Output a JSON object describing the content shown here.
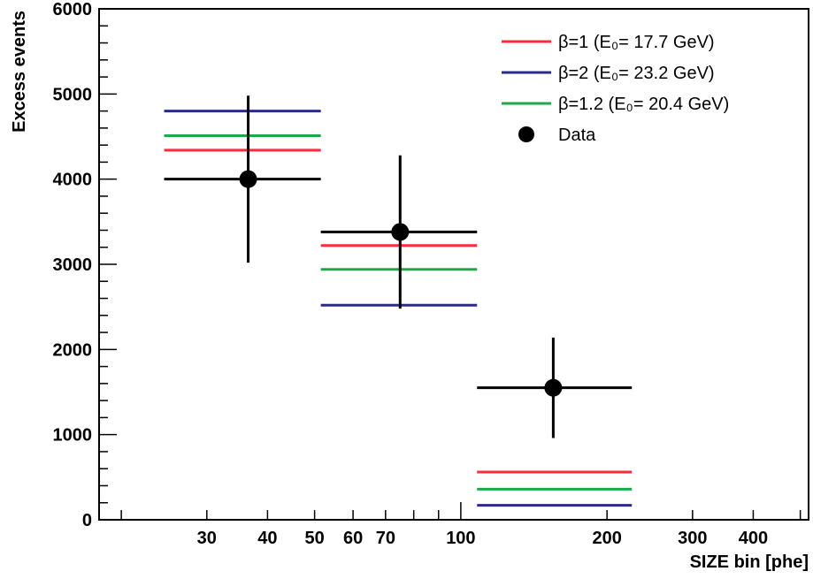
{
  "chart_data": {
    "type": "scatter",
    "title": "",
    "xlabel": "SIZE bin [phe]",
    "ylabel": "Excess events",
    "xscale": "log",
    "xlim": [
      18,
      520
    ],
    "ylim": [
      0,
      6000
    ],
    "legend_position": "top-right",
    "grid": false,
    "x_tick_labels": [
      "30",
      "40",
      "50",
      "60",
      "70",
      "100",
      "200",
      "300",
      "400"
    ],
    "x_tick_values": [
      30,
      40,
      50,
      60,
      70,
      100,
      200,
      300,
      400
    ],
    "y_tick_labels": [
      "0",
      "1000",
      "2000",
      "3000",
      "4000",
      "5000",
      "6000"
    ],
    "y_tick_values": [
      0,
      1000,
      2000,
      3000,
      4000,
      5000,
      6000
    ],
    "bins": [
      {
        "x_low": 24.5,
        "x_high": 51.5
      },
      {
        "x_low": 51.5,
        "x_high": 108
      },
      {
        "x_low": 108,
        "x_high": 225
      }
    ],
    "series": [
      {
        "name": "β=1 (E₀= 17.7 GeV)",
        "color": "#ff2a3a",
        "values": [
          4340,
          3220,
          560
        ]
      },
      {
        "name": "β=2 (E₀= 23.2 GeV)",
        "color": "#2c2a8a",
        "values": [
          4800,
          2520,
          170
        ]
      },
      {
        "name": "β=1.2 (E₀= 20.4 GeV)",
        "color": "#1ea84a",
        "values": [
          4510,
          2940,
          360
        ]
      },
      {
        "name": "Data",
        "color": "#000000",
        "marker": "circle",
        "x": [
          36.5,
          75,
          155
        ],
        "values": [
          4000,
          3380,
          1550
        ],
        "yerr": [
          980,
          900,
          590
        ]
      }
    ]
  }
}
